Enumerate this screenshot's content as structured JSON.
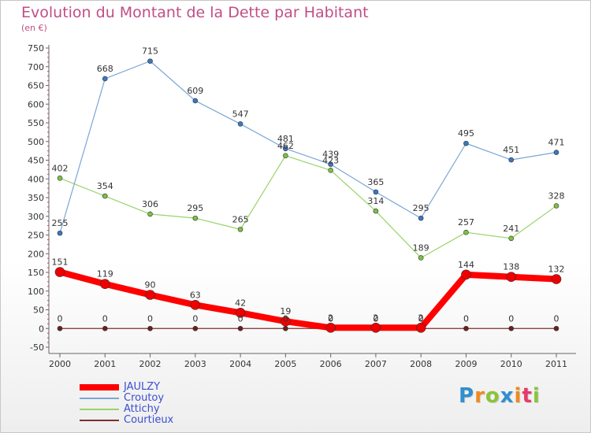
{
  "title": "Evolution du Montant de la Dette par Habitant",
  "subtitle": "(en €)",
  "brand": {
    "text": "Proxiti",
    "letters": [
      {
        "ch": "P",
        "color": "#2f8fd0"
      },
      {
        "ch": "r",
        "color": "#ef8a1f"
      },
      {
        "ch": "o",
        "color": "#8bc33a"
      },
      {
        "ch": "x",
        "color": "#2f8fd0"
      },
      {
        "ch": "i",
        "color": "#ef8a1f"
      },
      {
        "ch": "t",
        "color": "#e63b6b"
      },
      {
        "ch": "i",
        "color": "#8bc33a"
      }
    ]
  },
  "chart_data": {
    "type": "line",
    "title": "Evolution du Montant de la Dette par Habitant",
    "ylabel": "(en €)",
    "xlabel": "",
    "x": [
      "2000",
      "2001",
      "2002",
      "2003",
      "2004",
      "2005",
      "2006",
      "2007",
      "2008",
      "2009",
      "2010",
      "2011"
    ],
    "ylim": [
      -50,
      750
    ],
    "yticks": [
      -50,
      0,
      50,
      100,
      150,
      200,
      250,
      300,
      350,
      400,
      450,
      500,
      550,
      600,
      650,
      700,
      750
    ],
    "grid": false,
    "legend": "bottom-left",
    "series": [
      {
        "name": "JAULZY",
        "color": "#ff0000",
        "marker": "#ee0000",
        "width": 8,
        "r": 6,
        "values": [
          151,
          119,
          90,
          63,
          42,
          19,
          2,
          2,
          2,
          144,
          138,
          132
        ]
      },
      {
        "name": "Croutoy",
        "color": "#7aa6d6",
        "marker": "#3a78c2",
        "width": 1.2,
        "r": 3,
        "values": [
          255,
          668,
          715,
          609,
          547,
          481,
          439,
          365,
          295,
          495,
          451,
          471
        ]
      },
      {
        "name": "Attichy",
        "color": "#9ad36a",
        "marker": "#7cc242",
        "width": 1.2,
        "r": 3,
        "values": [
          402,
          354,
          306,
          295,
          265,
          462,
          423,
          314,
          189,
          257,
          241,
          328
        ]
      },
      {
        "name": "Courtieux",
        "color": "#7a3030",
        "marker": "#6a1f1f",
        "width": 1.2,
        "r": 3,
        "values": [
          0,
          0,
          0,
          0,
          0,
          0,
          0,
          0,
          0,
          0,
          0,
          0
        ]
      }
    ]
  }
}
